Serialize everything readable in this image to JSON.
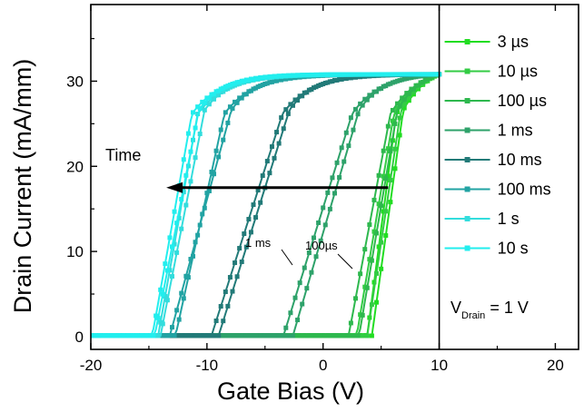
{
  "chart_data": {
    "type": "line",
    "title": "",
    "xlabel": "Gate Bias (V)",
    "ylabel": "Drain Current (mA/mm)",
    "xlim": [
      -20,
      22
    ],
    "ylim": [
      -1.5,
      39
    ],
    "xticks": [
      -20,
      -10,
      0,
      10,
      20
    ],
    "yticks": [
      0,
      10,
      20,
      30
    ],
    "x_tick_labels": [
      "-20",
      "-10",
      "0",
      "10",
      "20"
    ],
    "y_tick_labels": [
      "0",
      "10",
      "20",
      "30"
    ],
    "legend_position": "right (separate panel)",
    "series": [
      {
        "name": "3 µs",
        "color": "#22dd22",
        "v_end": 10,
        "i_end": 30.8,
        "vth_up": 5.2,
        "vth_down": 5.6,
        "knee": 6.3
      },
      {
        "name": "10 µs",
        "color": "#33cc44",
        "v_end": 10,
        "i_end": 30.8,
        "vth_up": 4.3,
        "vth_down": 5.2,
        "knee": 6.1
      },
      {
        "name": "100 µs",
        "color": "#2eb84e",
        "v_end": 10,
        "i_end": 30.8,
        "vth_up": 3.6,
        "vth_down": 4.5,
        "knee": 5.8
      },
      {
        "name": "1 ms",
        "color": "#2ea26a",
        "v_end": 10,
        "i_end": 30.8,
        "vth_up": -2.0,
        "vth_down": -1.2,
        "knee": 2.5
      },
      {
        "name": "10 ms",
        "color": "#227a78",
        "v_end": 10,
        "i_end": 30.8,
        "vth_up": -8.2,
        "vth_down": -7.6,
        "knee": -3.5
      },
      {
        "name": "100 ms",
        "color": "#22a3a3",
        "v_end": 10,
        "i_end": 30.8,
        "vth_up": -11.3,
        "vth_down": -11.8,
        "knee": -8.5
      },
      {
        "name": "1 s",
        "color": "#33dddd",
        "v_end": 10,
        "i_end": 30.8,
        "vth_up": -12.8,
        "vth_down": -12.6,
        "knee": -10.8
      },
      {
        "name": "10 s",
        "color": "#22eeee",
        "v_end": 10,
        "i_end": 30.8,
        "vth_up": -13.3,
        "vth_down": -13.1,
        "knee": -11.3
      }
    ],
    "annotations": {
      "time_label": "Time",
      "time_arrow": {
        "from_x": 5.6,
        "to_x": -13.5,
        "y": 17.5
      },
      "label_1ms": "1 ms",
      "label_100us": "100µs",
      "vd_prefix": "V",
      "vd_sub": "Drain",
      "vd_value": " = 1 V"
    }
  }
}
